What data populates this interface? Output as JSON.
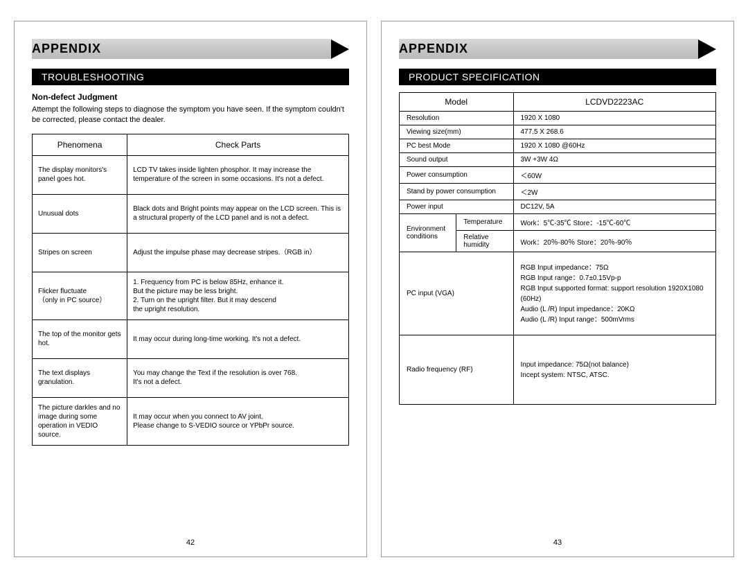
{
  "left": {
    "appendix": "APPENDIX",
    "section": "TROUBLESHOOTING",
    "subheading": "Non-defect Judgment",
    "intro": "Attempt the following steps to diagnose the symptom you have seen. If the symptom couldn't be corrected, please contact the dealer.",
    "columns": [
      "Phenomena",
      "Check Parts"
    ],
    "rows": [
      {
        "p": "The display monitors's panel goes hot.",
        "c": "LCD TV takes inside lighten phosphor. It may increase the temperature of the screen in some occasions. It's not a defect."
      },
      {
        "p": "Unusual dots",
        "c": "Black dots and Bright points may appear on the LCD screen. This is a structural property of the LCD panel and is not a defect."
      },
      {
        "p": "Stripes on screen",
        "c": "Adjust the impulse phase may decrease stripes.（RGB in）"
      },
      {
        "p": "Flicker fluctuate\n（only in PC source）",
        "c": "1. Frequency from PC is below 85Hz, enhance it.\n    But the picture may be less bright.\n2. Turn on the upright filter. But it may descend\n    the upright resolution."
      },
      {
        "p": "The top of the monitor gets hot.",
        "c": "It may occur during long-time working. It's not a defect."
      },
      {
        "p": "The text displays granulation.",
        "c": "You may change the Text if the resolution is over 768.\nIt's not a defect."
      },
      {
        "p": "The picture darkles and no image during some operation in VEDIO source.",
        "c": "It may occur when you connect to AV joint.\nPlease change to S-VEDIO source or YPbPr source."
      }
    ],
    "page_num": "42"
  },
  "right": {
    "appendix": "APPENDIX",
    "section": "PRODUCT SPECIFICATION",
    "columns": [
      "Model",
      "LCDVD2223AC"
    ],
    "basic_rows": [
      {
        "l": "Resolution",
        "v": "1920 X 1080"
      },
      {
        "l": "Viewing size(mm)",
        "v": "477.5  X 268.6"
      },
      {
        "l": "PC best Mode",
        "v": "1920 X 1080 @60Hz"
      },
      {
        "l": "Sound output",
        "v": "3W +3W  4Ω"
      },
      {
        "l": "Power consumption",
        "v": "＜60W"
      },
      {
        "l": "Stand by power consumption",
        "v": "＜2W"
      },
      {
        "l": "Power input",
        "v": "DC12V, 5A"
      }
    ],
    "env": {
      "label": "Environment conditions",
      "rows": [
        {
          "l": "Temperature",
          "v": "Work：5℃-35℃     Store：-15℃-60℃"
        },
        {
          "l": "Relative humidity",
          "v": "Work：20％-80％    Store：20％-90％"
        }
      ]
    },
    "pc": {
      "label": "PC  input (VGA)",
      "lines": [
        "RGB Input impedance：75Ω",
        "RGB Input range：0.7±0.15Vp-p",
        "RGB Input supported format: support resolution 1920X1080 (60Hz)",
        "Audio (L /R) Input impedance：20KΩ",
        "Audio (L /R) Input range：500mVrms"
      ]
    },
    "rf": {
      "label": "Radio frequency (RF)",
      "lines": [
        "Input impedance: 75Ω(not balance)",
        "Incept system: NTSC, ATSC."
      ]
    },
    "page_num": "43"
  }
}
